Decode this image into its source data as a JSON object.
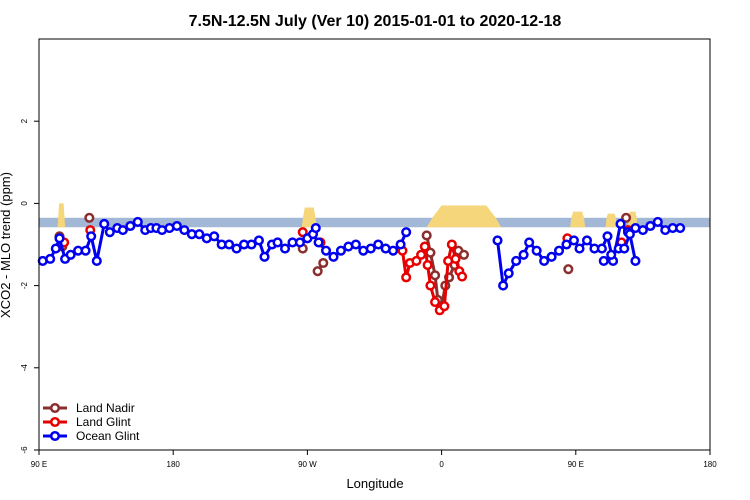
{
  "chart_data": {
    "type": "line",
    "title": "7.5N-12.5N July (Ver 10)   2015-01-01 to 2020-12-18",
    "xlabel": "Longitude",
    "ylabel": "XCO2 - MLO trend (ppm)",
    "xlim": [
      90,
      450
    ],
    "ylim": [
      -6,
      4
    ],
    "x_ticks": [
      {
        "value": 90,
        "label": "90 E"
      },
      {
        "value": 162,
        "label": "180"
      },
      {
        "value": 234,
        "label": "90 W"
      },
      {
        "value": 306,
        "label": "0"
      },
      {
        "value": 378,
        "label": "90 E"
      },
      {
        "value": 450,
        "label": "180"
      }
    ],
    "y_ticks": [
      -6,
      -4,
      -2,
      0,
      2
    ],
    "land_band": {
      "y_top": -0.35,
      "y_bottom": -0.58,
      "ocean_color": "#a3b8d6",
      "land_color": "#f5d67a"
    },
    "land_segments": [
      {
        "x": [
          100,
          104
        ],
        "ymax": 0.0
      },
      {
        "x": [
          231,
          239
        ],
        "ymax": -0.1
      },
      {
        "x": [
          298,
          338
        ],
        "ymax": -0.05
      },
      {
        "x": [
          375,
          383
        ],
        "ymax": -0.2
      },
      {
        "x": [
          394,
          400
        ],
        "ymax": -0.25
      },
      {
        "x": [
          406,
          411
        ],
        "ymax": -0.2
      }
    ],
    "series": [
      {
        "name": "Land Nadir",
        "color": "#8b2e2e",
        "segments": [
          [
            [
              101,
              -0.8
            ],
            [
              102.5,
              -1.05
            ]
          ],
          [
            [
              117,
              -0.35
            ]
          ],
          [
            [
              231.5,
              -1.1
            ]
          ],
          [
            [
              239.5,
              -1.65
            ],
            [
              242.5,
              -1.45
            ]
          ],
          [
            [
              298,
              -0.78
            ],
            [
              300,
              -1.2
            ],
            [
              302.5,
              -1.75
            ],
            [
              304,
              -2.35
            ],
            [
              306,
              -2.5
            ],
            [
              308,
              -2.0
            ],
            [
              310,
              -1.8
            ],
            [
              313,
              -1.5
            ],
            [
              315,
              -1.15
            ],
            [
              318,
              -1.25
            ]
          ],
          [
            [
              374,
              -1.6
            ]
          ],
          [
            [
              405,
              -0.35
            ]
          ]
        ]
      },
      {
        "name": "Land Glint",
        "color": "#e60000",
        "segments": [
          [
            [
              103.5,
              -0.95
            ]
          ],
          [
            [
              117.5,
              -0.65
            ]
          ],
          [
            [
              231.5,
              -0.7
            ]
          ],
          [
            [
              241,
              -0.95
            ]
          ],
          [
            [
              285,
              -1.15
            ],
            [
              287,
              -1.8
            ],
            [
              289,
              -1.45
            ],
            [
              292.5,
              -1.4
            ],
            [
              295,
              -1.25
            ],
            [
              297,
              -1.05
            ],
            [
              298.5,
              -1.5
            ],
            [
              300,
              -2.0
            ],
            [
              302.5,
              -2.4
            ],
            [
              305,
              -2.6
            ],
            [
              307.5,
              -2.5
            ],
            [
              309.5,
              -1.4
            ],
            [
              311.5,
              -1.0
            ],
            [
              313.5,
              -1.35
            ],
            [
              315.5,
              -1.65
            ],
            [
              317,
              -1.78
            ]
          ],
          [
            [
              373.5,
              -0.85
            ]
          ],
          [
            [
              402.5,
              -0.95
            ]
          ],
          [
            [
              406,
              -0.65
            ]
          ]
        ]
      },
      {
        "name": "Ocean Glint",
        "color": "#0000ee",
        "segments": [
          [
            [
              92,
              -1.4
            ],
            [
              96,
              -1.35
            ],
            [
              99,
              -1.1
            ],
            [
              101,
              -0.85
            ],
            [
              104,
              -1.35
            ],
            [
              107,
              -1.25
            ],
            [
              111,
              -1.15
            ],
            [
              115,
              -1.15
            ],
            [
              118,
              -0.8
            ],
            [
              121,
              -1.4
            ],
            [
              125,
              -0.5
            ],
            [
              128,
              -0.7
            ],
            [
              132,
              -0.6
            ],
            [
              135,
              -0.65
            ],
            [
              139,
              -0.55
            ],
            [
              143,
              -0.45
            ],
            [
              147,
              -0.65
            ],
            [
              150,
              -0.6
            ],
            [
              153,
              -0.6
            ],
            [
              156,
              -0.65
            ],
            [
              160,
              -0.6
            ],
            [
              164,
              -0.55
            ],
            [
              168,
              -0.65
            ],
            [
              172,
              -0.75
            ],
            [
              176,
              -0.75
            ],
            [
              180,
              -0.85
            ],
            [
              184,
              -0.8
            ],
            [
              188,
              -1.0
            ],
            [
              192,
              -1.0
            ],
            [
              196,
              -1.1
            ],
            [
              200,
              -1.0
            ],
            [
              204,
              -1.0
            ],
            [
              208,
              -0.9
            ],
            [
              211,
              -1.3
            ],
            [
              215,
              -1.0
            ],
            [
              218,
              -0.95
            ],
            [
              222,
              -1.1
            ],
            [
              226,
              -0.95
            ],
            [
              230,
              -0.95
            ],
            [
              234,
              -0.85
            ],
            [
              237,
              -0.75
            ],
            [
              240,
              -0.95
            ],
            [
              244,
              -1.15
            ],
            [
              248,
              -1.3
            ],
            [
              252,
              -1.15
            ],
            [
              256,
              -1.05
            ],
            [
              260,
              -1.0
            ],
            [
              264,
              -1.15
            ],
            [
              268,
              -1.1
            ],
            [
              272,
              -1.0
            ],
            [
              276,
              -1.1
            ],
            [
              280,
              -1.15
            ],
            [
              284,
              -1.0
            ],
            [
              287,
              -0.7
            ]
          ],
          [
            [
              238.5,
              -0.6
            ]
          ],
          [
            [
              336,
              -0.9
            ],
            [
              339,
              -2.0
            ],
            [
              342,
              -1.7
            ],
            [
              346,
              -1.4
            ],
            [
              350,
              -1.25
            ],
            [
              353,
              -0.95
            ],
            [
              357,
              -1.15
            ],
            [
              361,
              -1.4
            ],
            [
              365,
              -1.3
            ],
            [
              369,
              -1.15
            ],
            [
              373,
              -1.0
            ],
            [
              377,
              -0.9
            ],
            [
              380,
              -1.1
            ],
            [
              384,
              -0.9
            ],
            [
              388,
              -1.1
            ],
            [
              392,
              -1.1
            ],
            [
              395,
              -0.8
            ],
            [
              398,
              -1.4
            ],
            [
              402,
              -0.5
            ],
            [
              406,
              -0.7
            ],
            [
              410,
              -0.6
            ],
            [
              414,
              -0.65
            ],
            [
              418,
              -0.55
            ],
            [
              422,
              -0.45
            ],
            [
              426,
              -0.65
            ],
            [
              430,
              -0.6
            ],
            [
              434,
              -0.6
            ]
          ],
          [
            [
              393,
              -1.4
            ],
            [
              397,
              -1.25
            ],
            [
              401,
              -1.1
            ],
            [
              404,
              -1.1
            ],
            [
              407,
              -0.75
            ],
            [
              410,
              -1.4
            ]
          ]
        ]
      }
    ]
  }
}
